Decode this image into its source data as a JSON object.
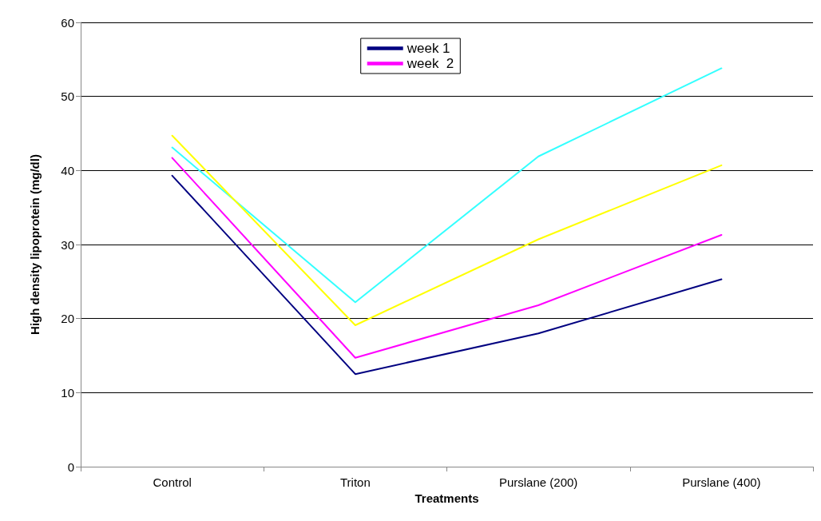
{
  "chart_data": {
    "type": "line",
    "xlabel": "Treatments",
    "ylabel": "High density lipoprotein (mg/dl)",
    "categories": [
      "Control",
      "Triton",
      "Purslane (200)",
      "Purslane (400)"
    ],
    "series": [
      {
        "name": "week 1",
        "color": "#000080",
        "values": [
          39.3,
          12.5,
          18.0,
          25.3
        ]
      },
      {
        "name": "week  2",
        "color": "#ff00ff",
        "values": [
          41.7,
          14.7,
          21.8,
          31.3
        ]
      },
      {
        "color": "#33ffff",
        "values": [
          43.1,
          22.2,
          41.9,
          53.8
        ]
      },
      {
        "color": "#ffff00",
        "values": [
          44.7,
          19.1,
          30.7,
          40.7
        ]
      }
    ],
    "ylim": [
      0,
      60
    ],
    "yticks": [
      0,
      10,
      20,
      30,
      40,
      50,
      60
    ],
    "grid": "y",
    "legend": "top",
    "marker": "none",
    "line_style": "solid"
  }
}
